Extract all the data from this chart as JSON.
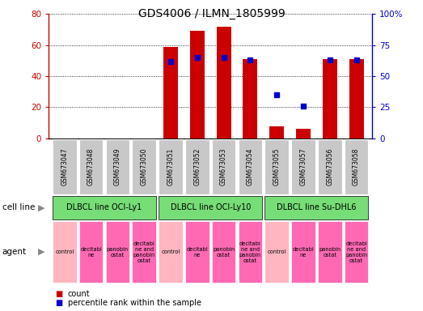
{
  "title": "GDS4006 / ILMN_1805999",
  "samples": [
    "GSM673047",
    "GSM673048",
    "GSM673049",
    "GSM673050",
    "GSM673051",
    "GSM673052",
    "GSM673053",
    "GSM673054",
    "GSM673055",
    "GSM673057",
    "GSM673056",
    "GSM673058"
  ],
  "counts": [
    0,
    0,
    0,
    0,
    59,
    69,
    72,
    51,
    8,
    6,
    51,
    51
  ],
  "percentile_ranks": [
    null,
    null,
    null,
    null,
    62,
    65,
    65,
    63,
    35,
    26,
    63,
    63
  ],
  "cell_line_spans": [
    {
      "label": "DLBCL line OCI-Ly1",
      "start": 0,
      "end": 3
    },
    {
      "label": "DLBCL line OCI-Ly10",
      "start": 4,
      "end": 7
    },
    {
      "label": "DLBCL line Su-DHL6",
      "start": 8,
      "end": 11
    }
  ],
  "agent_labels": [
    "control",
    "decitabi\nne",
    "panobin\nostat",
    "decitabi\nne and\npanobin\nostat",
    "control",
    "decitabi\nne",
    "panobin\nostat",
    "decitabi\nne and\npanobin\nostat",
    "control",
    "decitabi\nne",
    "panobin\nostat",
    "decitabi\nne and\npanobin\nostat"
  ],
  "left_ylim": [
    0,
    80
  ],
  "right_ylim": [
    0,
    100
  ],
  "left_yticks": [
    0,
    20,
    40,
    60,
    80
  ],
  "right_yticks": [
    0,
    25,
    50,
    75,
    100
  ],
  "right_yticklabels": [
    "0",
    "25",
    "50",
    "75",
    "100%"
  ],
  "bar_color": "#CC0000",
  "dot_color": "#0000CC",
  "tick_label_bg": "#C8C8C8",
  "cell_line_color": "#77DD77",
  "agent_ctrl_color": "#FFB6C1",
  "agent_other_color": "#FF69B4",
  "left_axis_color": "#CC0000",
  "right_axis_color": "#0000CC"
}
